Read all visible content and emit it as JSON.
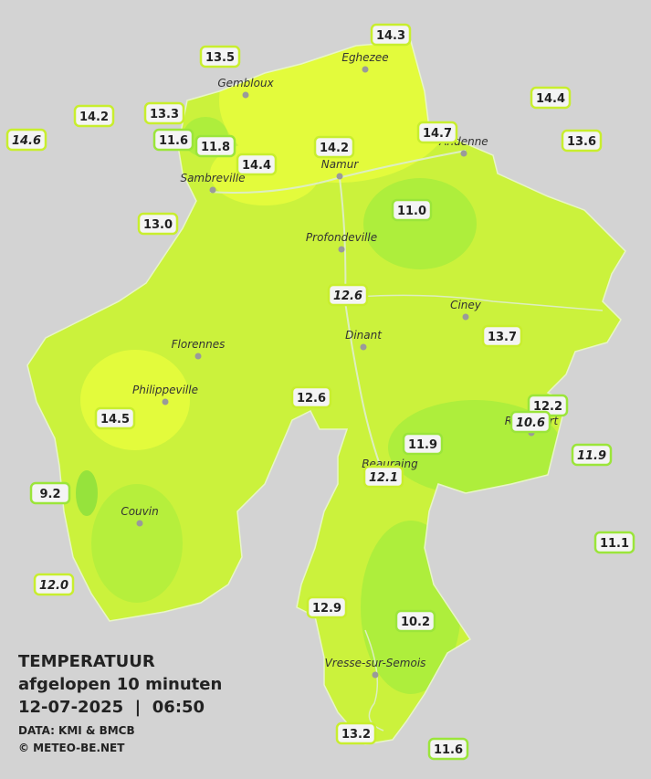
{
  "legend": {
    "title": "TEMPERATUUR",
    "subtitle": "afgelopen 10 minuten",
    "datetime": "12-07-2025  |  06:50",
    "source": "DATA: KMI & BMCB",
    "copyright": "© METEO-BE.NET"
  },
  "cities": [
    "Eghezee",
    "Gembloux",
    "Andenne",
    "Namur",
    "Sambreville",
    "Profondeville",
    "Ciney",
    "Dinant",
    "Florennes",
    "Philippeville",
    "Rochefort",
    "Beauraing",
    "Couvin",
    "Vresse-sur-Semois"
  ],
  "stations": [
    {
      "label": "14.3"
    },
    {
      "label": "13.5"
    },
    {
      "label": "14.4"
    },
    {
      "label": "14.2"
    },
    {
      "label": "13.3"
    },
    {
      "label": "14.6",
      "italic": true
    },
    {
      "label": "11.6"
    },
    {
      "label": "11.8"
    },
    {
      "label": "14.7"
    },
    {
      "label": "13.6"
    },
    {
      "label": "14.2"
    },
    {
      "label": "14.4"
    },
    {
      "label": "11.0"
    },
    {
      "label": "13.0"
    },
    {
      "label": "12.6",
      "italic": true
    },
    {
      "label": "13.7"
    },
    {
      "label": "12.6"
    },
    {
      "label": "12.2"
    },
    {
      "label": "10.6",
      "italic": true
    },
    {
      "label": "14.5"
    },
    {
      "label": "11.9"
    },
    {
      "label": "11.9",
      "italic": true
    },
    {
      "label": "12.1",
      "italic": true
    },
    {
      "label": "9.2"
    },
    {
      "label": "11.1"
    },
    {
      "label": "12.0",
      "italic": true
    },
    {
      "label": "12.9"
    },
    {
      "label": "10.2"
    },
    {
      "label": "13.2"
    },
    {
      "label": "11.6"
    }
  ]
}
